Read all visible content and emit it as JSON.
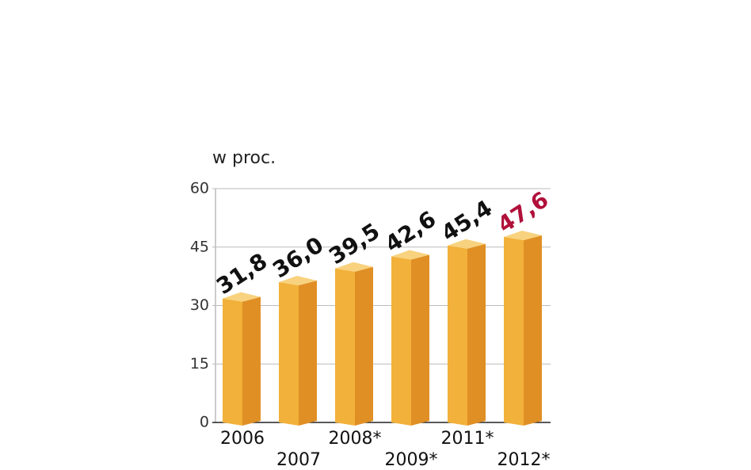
{
  "chart_data": {
    "type": "bar3d",
    "axis_label": "w proc.",
    "categories": [
      "2006",
      "2007",
      "2008*",
      "2009*",
      "2011*",
      "2012*"
    ],
    "values": [
      31.8,
      36.0,
      39.5,
      42.6,
      45.4,
      47.6
    ],
    "value_labels": [
      "31,8",
      "36,0",
      "39,5",
      "42,6",
      "45,4",
      "47,6"
    ],
    "value_label_colors": [
      "#111111",
      "#111111",
      "#111111",
      "#111111",
      "#111111",
      "#b0103a"
    ],
    "colors": {
      "front": "#f2b13a",
      "side": "#e08f25",
      "top": "#f8d27e"
    },
    "ylim": [
      0,
      60
    ],
    "yticks": [
      0,
      15,
      30,
      45,
      60
    ],
    "grid": true
  }
}
